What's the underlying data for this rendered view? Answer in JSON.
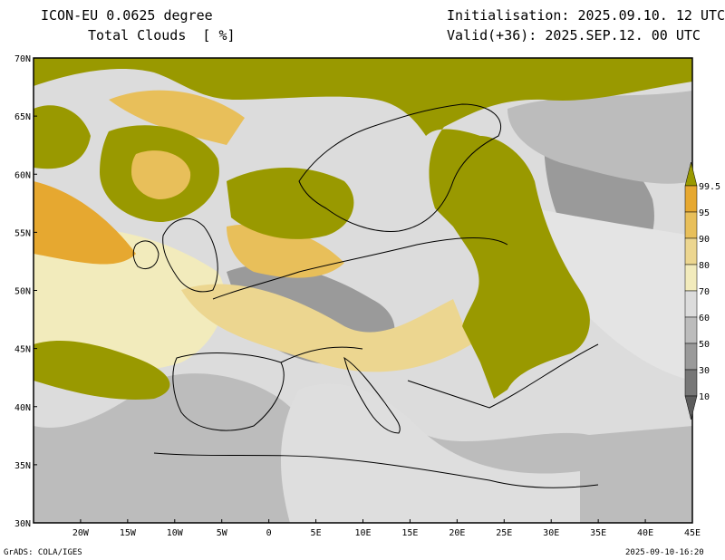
{
  "header": {
    "model": "ICON-EU 0.0625 degree",
    "field": "Total Clouds  [ %]",
    "init": "Initialisation: 2025.09.10. 12 UTC",
    "valid": "Valid(+36): 2025.SEP.12. 00 UTC"
  },
  "axes": {
    "lat_labels": [
      "70N",
      "65N",
      "60N",
      "55N",
      "50N",
      "45N",
      "40N",
      "35N",
      "30N"
    ],
    "lon_labels": [
      "20W",
      "15W",
      "10W",
      "5W",
      "0",
      "5E",
      "10E",
      "15E",
      "20E",
      "25E",
      "30E",
      "35E",
      "40E",
      "45E"
    ],
    "lat_range": [
      30,
      70
    ],
    "lon_range": [
      -25,
      45
    ]
  },
  "colorbar": {
    "levels": [
      {
        "label": "99.5",
        "color": "#999900"
      },
      {
        "label": "95",
        "color": "#e6a830"
      },
      {
        "label": "90",
        "color": "#e8bf5a"
      },
      {
        "label": "80",
        "color": "#ecd690"
      },
      {
        "label": "70",
        "color": "#f2ebbc"
      },
      {
        "label": "60",
        "color": "#dcdcdc"
      },
      {
        "label": "50",
        "color": "#bcbcbc"
      },
      {
        "label": "30",
        "color": "#9a9a9a"
      },
      {
        "label": "10",
        "color": "#777777"
      }
    ],
    "below_color": "#5c5c5c"
  },
  "footer": {
    "left": "GrADS: COLA/IGES",
    "right": "2025-09-10-16:20"
  }
}
